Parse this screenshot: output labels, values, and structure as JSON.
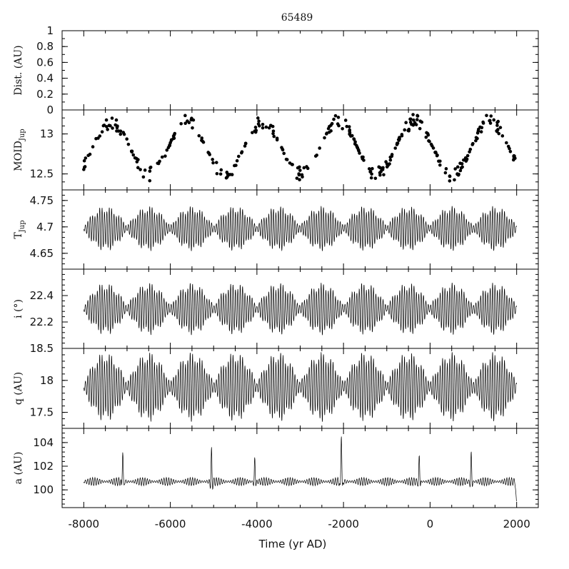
{
  "chart_data": {
    "title": "65489",
    "type": "line",
    "xlabel": "Time (yr AD)",
    "xlim": [
      -8500,
      2500
    ],
    "xticks": [
      "-8000",
      "-6000",
      "-4000",
      "-2000",
      "0",
      "2000"
    ],
    "panels": [
      {
        "id": "dist",
        "type": "line",
        "ylabel": "Dist. (AU)",
        "ylim": [
          0,
          1
        ],
        "yticks": [
          "0",
          "0.2",
          "0.4",
          "0.6",
          "0.8",
          "1"
        ],
        "yticks_values": [
          0,
          0.2,
          0.4,
          0.6,
          0.8,
          1
        ],
        "series": []
      },
      {
        "id": "moid",
        "type": "scatter",
        "ylabel": "MOID",
        "ylabel_sub": "Jup",
        "ylim": [
          12.3,
          13.3
        ],
        "yticks": [
          "12.5",
          "13"
        ],
        "yticks_values": [
          12.5,
          13
        ],
        "series": [
          {
            "shape": "sine-cloud",
            "min": 12.4,
            "max": 13.25,
            "period_yr": 1750,
            "count": 330
          }
        ]
      },
      {
        "id": "tjup",
        "type": "line",
        "ylabel": "T",
        "ylabel_sub": "Jup",
        "ylim": [
          4.62,
          4.77
        ],
        "yticks": [
          "4.65",
          "4.7",
          "4.75"
        ],
        "yticks_values": [
          4.65,
          4.7,
          4.75
        ],
        "series": [
          {
            "shape": "beat-oscillation",
            "center": 4.697,
            "amplitude": 0.043,
            "beat_period_yr": 1000,
            "osc_period_yr": 55
          }
        ]
      },
      {
        "id": "incl",
        "type": "line",
        "ylabel": "i (°)",
        "ylim": [
          22.0,
          22.6
        ],
        "yticks": [
          "22.2",
          "22.4"
        ],
        "yticks_values": [
          22.2,
          22.4
        ],
        "series": [
          {
            "shape": "beat-oscillation",
            "center": 22.3,
            "amplitude": 0.2,
            "beat_period_yr": 1000,
            "osc_period_yr": 55
          }
        ]
      },
      {
        "id": "q",
        "type": "line",
        "ylabel": "q (AU)",
        "ylim": [
          17.25,
          18.5
        ],
        "yticks": [
          "17.5",
          "18",
          "18.5"
        ],
        "yticks_values": [
          17.5,
          18,
          18.5
        ],
        "series": [
          {
            "shape": "beat-oscillation",
            "center": 17.9,
            "amplitude": 0.55,
            "beat_period_yr": 1000,
            "osc_period_yr": 55
          }
        ]
      },
      {
        "id": "a",
        "type": "line",
        "ylabel": "a (AU)",
        "ylim": [
          98.5,
          105.2
        ],
        "yticks": [
          "100",
          "102",
          "104"
        ],
        "yticks_values": [
          100,
          102,
          104
        ],
        "series": [
          {
            "shape": "noisy-with-spikes",
            "baseline": 100.7,
            "spikes": [
              [
                -7100,
                103.3
              ],
              [
                -5050,
                103.4
              ],
              [
                -4050,
                102.7
              ],
              [
                -2050,
                104.9
              ],
              [
                -250,
                102.9
              ],
              [
                950,
                103.2
              ],
              [
                2000,
                98.8
              ]
            ]
          }
        ]
      }
    ]
  }
}
